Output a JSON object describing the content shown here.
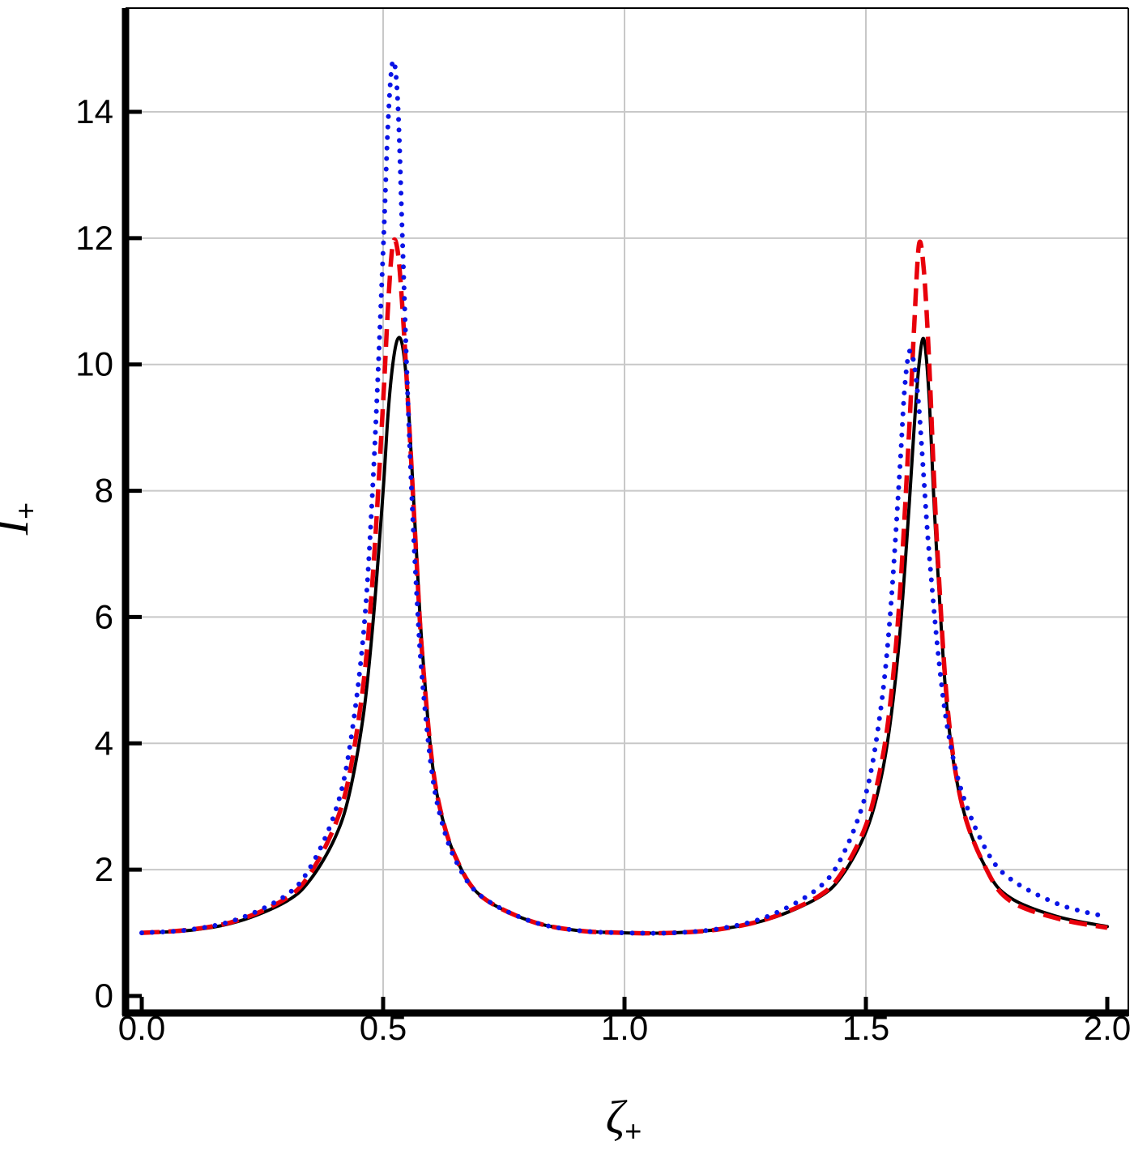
{
  "chart_data": {
    "type": "line",
    "xlabel": "ζ",
    "xlabel_sub": "+",
    "ylabel": "I",
    "ylabel_sub": "+",
    "xlim": [
      0.0,
      2.0
    ],
    "ylim": [
      -0.3,
      15.5
    ],
    "grid": true,
    "x_ticks": [
      {
        "value": 0.0,
        "label": "0.0"
      },
      {
        "value": 0.5,
        "label": "0.5"
      },
      {
        "value": 1.0,
        "label": "1.0"
      },
      {
        "value": 1.5,
        "label": "1.5"
      },
      {
        "value": 2.0,
        "label": "2.0"
      }
    ],
    "y_ticks": [
      {
        "value": 0,
        "label": "0"
      },
      {
        "value": 2,
        "label": "2"
      },
      {
        "value": 4,
        "label": "4"
      },
      {
        "value": 6,
        "label": "6"
      },
      {
        "value": 8,
        "label": "8"
      },
      {
        "value": 10,
        "label": "10"
      },
      {
        "value": 12,
        "label": "12"
      },
      {
        "value": 14,
        "label": "14"
      }
    ],
    "series": [
      {
        "style": "solid",
        "color": "#000000",
        "x": [
          0.0,
          0.1,
          0.2,
          0.3,
          0.35,
          0.4,
          0.43,
          0.46,
          0.48,
          0.5,
          0.51,
          0.52,
          0.53,
          0.54,
          0.55,
          0.56,
          0.57,
          0.58,
          0.6,
          0.62,
          0.65,
          0.7,
          0.8,
          0.9,
          1.0,
          1.1,
          1.2,
          1.3,
          1.4,
          1.45,
          1.5,
          1.53,
          1.55,
          1.57,
          1.59,
          1.6,
          1.61,
          1.62,
          1.63,
          1.64,
          1.65,
          1.67,
          1.7,
          1.75,
          1.8,
          1.9,
          2.0
        ],
        "y": [
          1.0,
          1.04,
          1.18,
          1.5,
          1.85,
          2.5,
          3.2,
          4.5,
          6.0,
          8.0,
          9.2,
          10.0,
          10.4,
          10.3,
          9.6,
          8.3,
          6.9,
          5.6,
          3.8,
          2.9,
          2.2,
          1.6,
          1.2,
          1.04,
          1.0,
          1.0,
          1.06,
          1.22,
          1.55,
          1.9,
          2.6,
          3.4,
          4.3,
          5.7,
          7.8,
          9.0,
          10.0,
          10.4,
          9.6,
          8.0,
          6.6,
          4.4,
          3.0,
          2.0,
          1.55,
          1.25,
          1.1
        ]
      },
      {
        "style": "dashed",
        "color": "#e8000b",
        "x": [
          0.0,
          0.1,
          0.2,
          0.3,
          0.35,
          0.4,
          0.43,
          0.46,
          0.48,
          0.5,
          0.51,
          0.52,
          0.53,
          0.54,
          0.55,
          0.56,
          0.57,
          0.58,
          0.6,
          0.62,
          0.65,
          0.7,
          0.8,
          0.9,
          1.0,
          1.1,
          1.2,
          1.3,
          1.4,
          1.45,
          1.5,
          1.53,
          1.55,
          1.57,
          1.59,
          1.6,
          1.61,
          1.62,
          1.63,
          1.64,
          1.65,
          1.67,
          1.7,
          1.75,
          1.8,
          1.9,
          2.0
        ],
        "y": [
          1.0,
          1.05,
          1.2,
          1.55,
          1.95,
          2.7,
          3.5,
          5.0,
          6.8,
          9.4,
          10.9,
          11.9,
          11.8,
          10.9,
          9.6,
          8.2,
          6.8,
          5.5,
          3.8,
          2.9,
          2.2,
          1.6,
          1.2,
          1.04,
          1.0,
          1.0,
          1.06,
          1.23,
          1.57,
          1.95,
          2.7,
          3.6,
          4.6,
          6.3,
          9.0,
          10.6,
          11.9,
          11.5,
          10.2,
          8.4,
          6.8,
          4.5,
          3.0,
          2.0,
          1.5,
          1.22,
          1.08
        ]
      },
      {
        "style": "dotted",
        "color": "#0a14e6",
        "x": [
          0.0,
          0.1,
          0.2,
          0.3,
          0.35,
          0.4,
          0.43,
          0.46,
          0.48,
          0.5,
          0.51,
          0.52,
          0.53,
          0.54,
          0.55,
          0.56,
          0.57,
          0.58,
          0.6,
          0.62,
          0.65,
          0.7,
          0.8,
          0.9,
          1.0,
          1.1,
          1.2,
          1.3,
          1.4,
          1.45,
          1.5,
          1.53,
          1.55,
          1.57,
          1.58,
          1.59,
          1.6,
          1.61,
          1.62,
          1.63,
          1.65,
          1.67,
          1.7,
          1.75,
          1.8,
          1.9,
          2.0
        ],
        "y": [
          1.0,
          1.05,
          1.22,
          1.6,
          2.05,
          2.9,
          3.9,
          5.8,
          8.3,
          11.8,
          13.8,
          14.8,
          14.2,
          12.0,
          9.7,
          7.8,
          6.3,
          5.1,
          3.6,
          2.8,
          2.15,
          1.6,
          1.2,
          1.04,
          1.0,
          1.0,
          1.07,
          1.27,
          1.7,
          2.2,
          3.2,
          4.5,
          6.0,
          8.3,
          9.6,
          10.2,
          10.0,
          9.3,
          8.2,
          7.1,
          5.4,
          4.2,
          3.2,
          2.3,
          1.85,
          1.45,
          1.25
        ]
      }
    ]
  }
}
